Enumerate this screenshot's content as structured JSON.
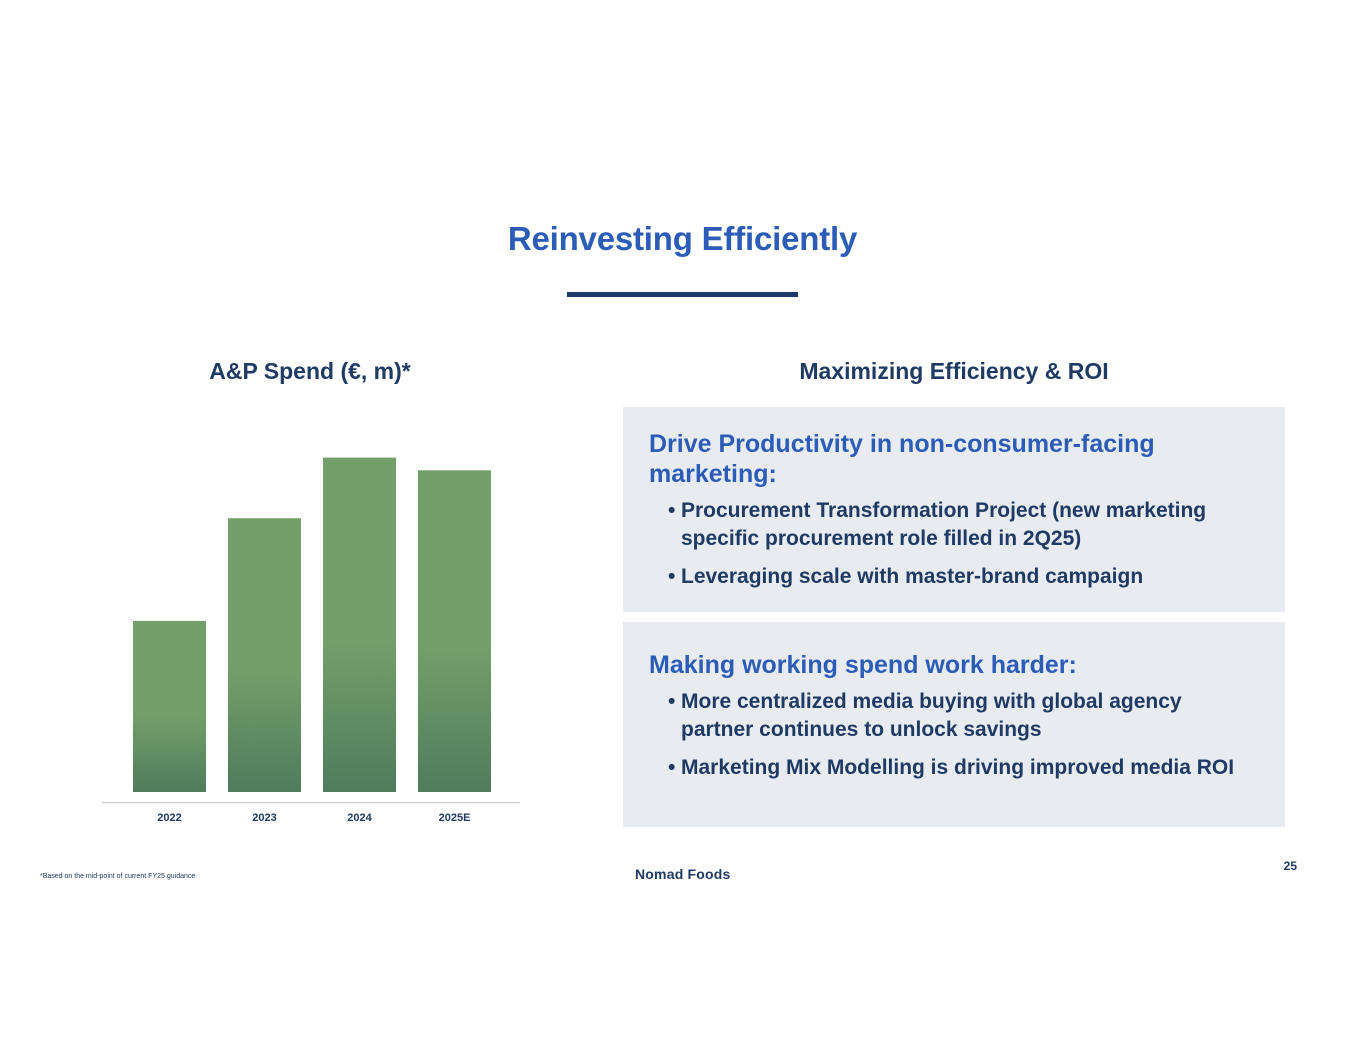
{
  "title": "Reinvesting Efficiently",
  "chart_heading": "A&P Spend (€, m)*",
  "right_heading": "Maximizing Efficiency & ROI",
  "chart_data": {
    "type": "bar",
    "title": "A&P Spend (€, m)*",
    "categories": [
      "2022",
      "2023",
      "2024",
      "2025E"
    ],
    "values": [
      175,
      280,
      342,
      329
    ],
    "ylim": [
      0,
      360
    ],
    "grid": false,
    "xlabel": "",
    "ylabel": "",
    "bar_color_top": "#739f6a",
    "bar_color_bottom": "#4f7c5c",
    "axis_color": "#d0d0d0"
  },
  "panels": [
    {
      "title": "Drive Productivity in non-consumer-facing marketing:",
      "bullets": [
        "Procurement Transformation Project (new marketing specific procurement role filled in 2Q25)",
        "Leveraging scale with master-brand campaign"
      ]
    },
    {
      "title": "Making working spend work harder:",
      "bullets": [
        "More centralized media buying with global agency partner continues to unlock savings",
        "Marketing Mix Modelling is driving improved media ROI"
      ]
    }
  ],
  "footnote": "*Based on the mid-point of current FY25 guidance",
  "brand": "Nomad Foods",
  "page_number": "25",
  "colors": {
    "title": "#2a5cb8",
    "heading": "#1f3a64",
    "panel_bg": "#e8ebef",
    "underline": "#1e3a6b"
  }
}
